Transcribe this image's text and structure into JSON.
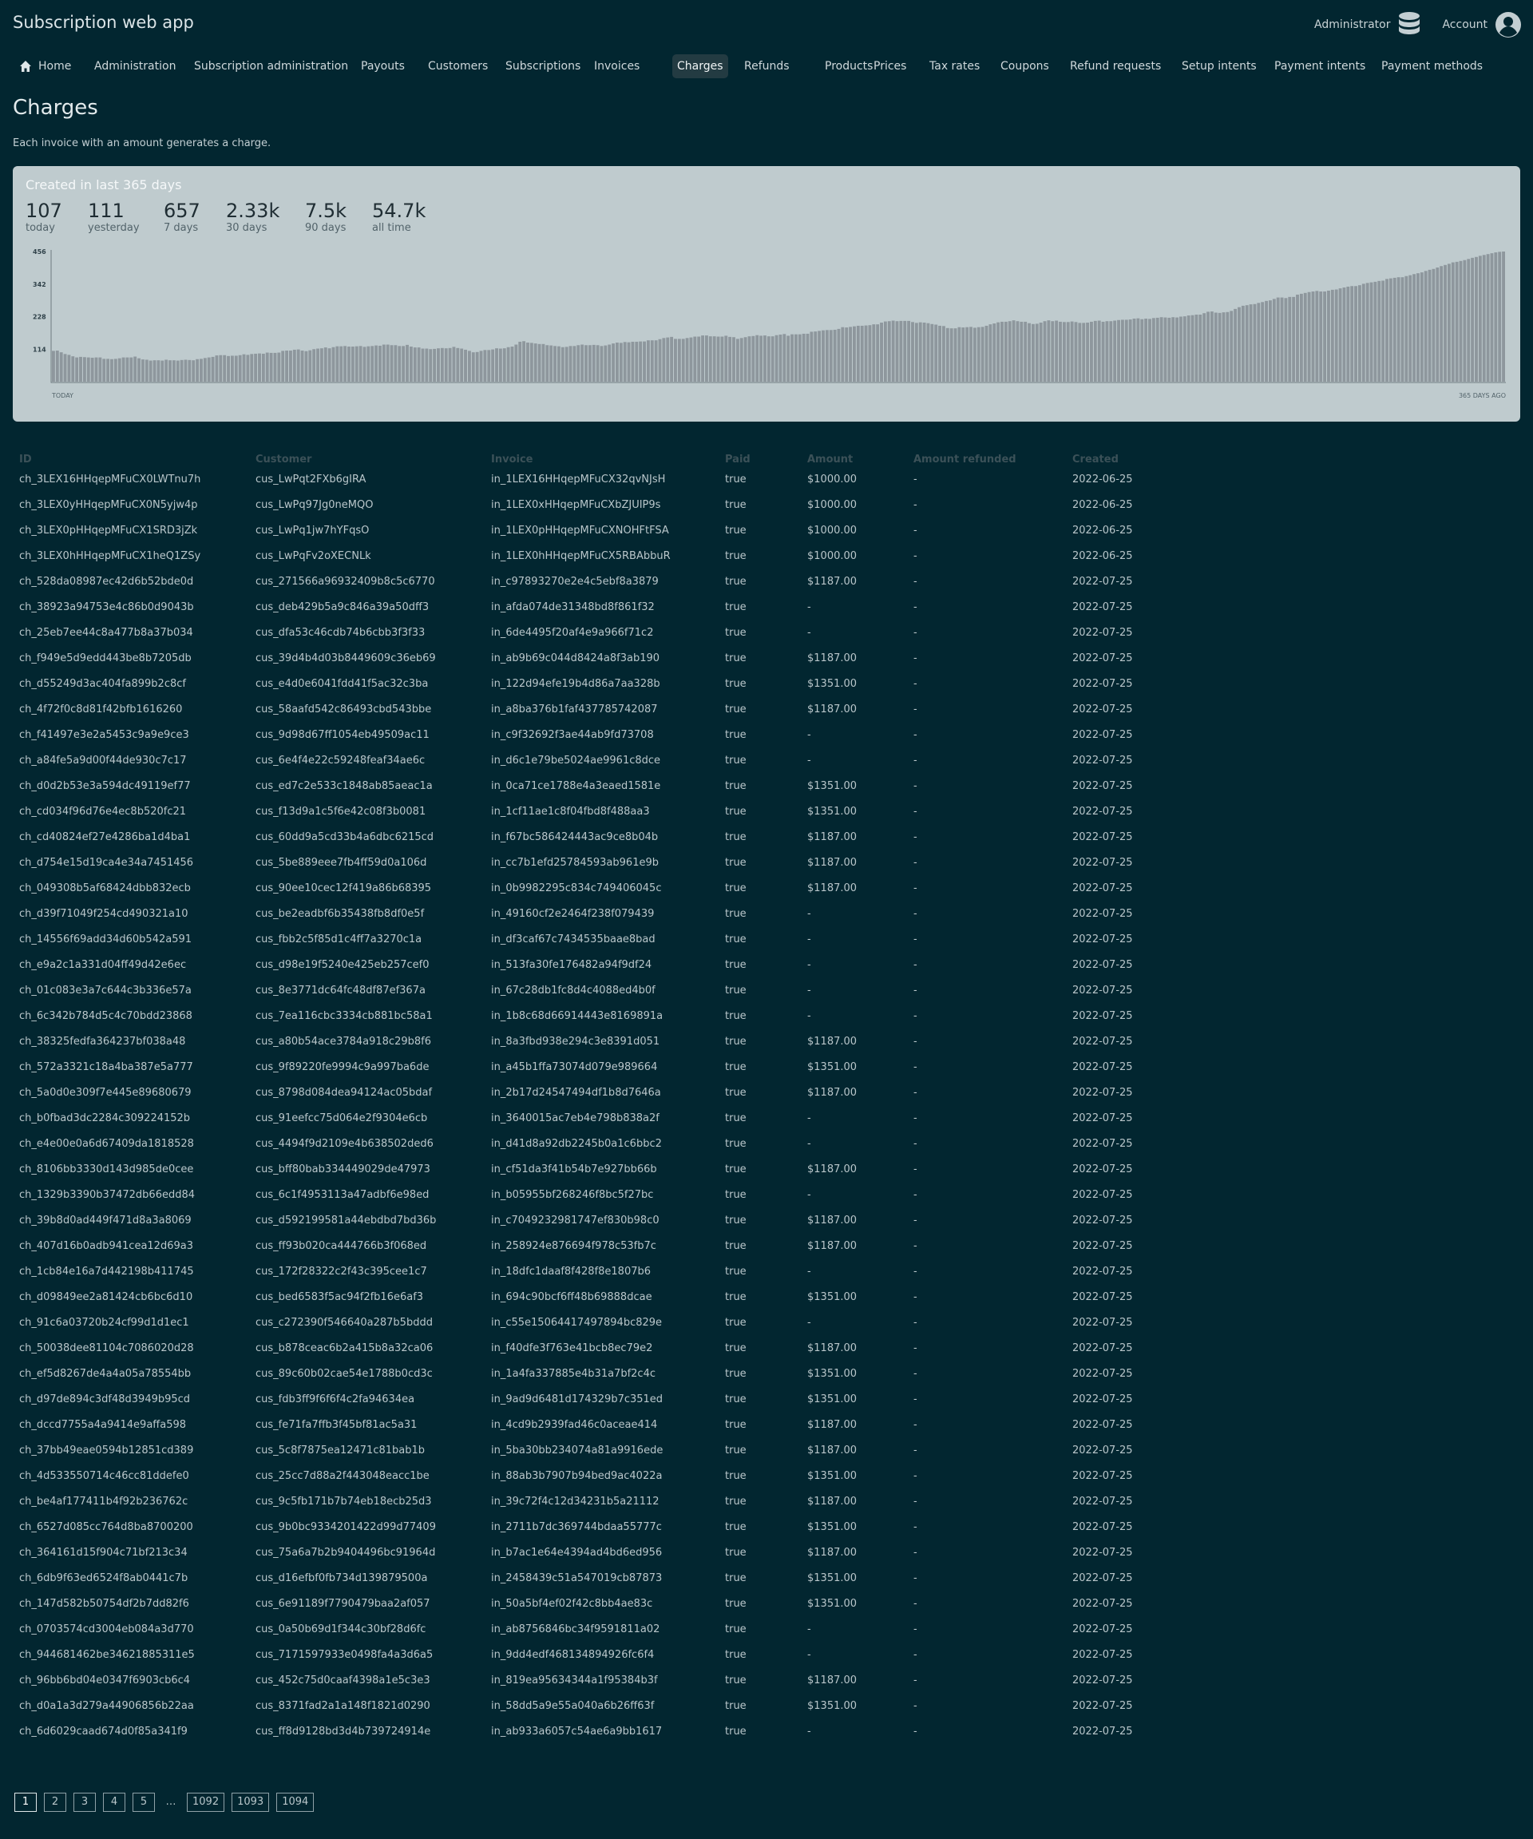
{
  "app_title": "Subscription web app",
  "header": {
    "admin_label": "Administrator",
    "admin_icon": "database-icon",
    "account_label": "Account",
    "account_icon": "user-circle-icon"
  },
  "nav": {
    "active": "Charges",
    "home_icon": "home-icon",
    "items": [
      "Home",
      "Administration",
      "Subscription administration",
      "Payouts",
      "Customers",
      "Subscriptions",
      "Invoices",
      "Charges",
      "Refunds",
      "Products",
      "Prices",
      "Tax rates",
      "Coupons",
      "Refund requests",
      "Setup intents",
      "Payment intents",
      "Payment methods"
    ]
  },
  "page": {
    "title": "Charges",
    "description": "Each invoice with an amount generates a charge."
  },
  "stats": {
    "title": "Created in last 365 days",
    "items": [
      {
        "value": "107",
        "label": "today"
      },
      {
        "value": "111",
        "label": "yesterday"
      },
      {
        "value": "657",
        "label": "7 days"
      },
      {
        "value": "2.33k",
        "label": "30 days"
      },
      {
        "value": "7.5k",
        "label": "90 days"
      },
      {
        "value": "54.7k",
        "label": "all time"
      }
    ]
  },
  "chart_data": {
    "type": "bar",
    "y_ticks": [
      "456",
      "342",
      "228",
      "114"
    ],
    "ylim": [
      0,
      456
    ],
    "x_left_label": "TODAY",
    "x_right_label": "365 DAYS AGO",
    "bar_color": "#8e979d",
    "values": [
      108,
      109,
      103,
      97,
      94,
      89,
      85,
      87,
      86,
      85,
      84,
      85,
      85,
      80,
      80,
      79,
      80,
      82,
      85,
      85,
      85,
      88,
      82,
      78,
      77,
      74,
      75,
      75,
      74,
      77,
      75,
      75,
      74,
      76,
      77,
      76,
      75,
      79,
      80,
      83,
      85,
      87,
      92,
      93,
      93,
      90,
      91,
      91,
      93,
      96,
      94,
      97,
      98,
      99,
      98,
      102,
      101,
      101,
      102,
      108,
      109,
      109,
      112,
      113,
      109,
      107,
      110,
      114,
      116,
      117,
      120,
      117,
      121,
      124,
      124,
      125,
      123,
      123,
      124,
      125,
      122,
      124,
      125,
      127,
      126,
      130,
      130,
      128,
      128,
      125,
      125,
      129,
      123,
      120,
      120,
      116,
      116,
      114,
      115,
      117,
      118,
      117,
      118,
      122,
      118,
      116,
      112,
      108,
      103,
      104,
      108,
      111,
      111,
      113,
      117,
      116,
      117,
      121,
      123,
      130,
      140,
      142,
      137,
      136,
      134,
      132,
      132,
      128,
      127,
      125,
      124,
      121,
      122,
      125,
      125,
      128,
      130,
      128,
      128,
      129,
      128,
      125,
      127,
      130,
      134,
      137,
      136,
      139,
      138,
      140,
      140,
      141,
      141,
      145,
      145,
      145,
      149,
      153,
      155,
      157,
      150,
      150,
      150,
      153,
      155,
      158,
      158,
      162,
      162,
      159,
      159,
      158,
      158,
      161,
      157,
      156,
      150,
      153,
      156,
      159,
      160,
      163,
      161,
      162,
      159,
      159,
      163,
      165,
      167,
      161,
      166,
      166,
      166,
      168,
      168,
      175,
      176,
      178,
      180,
      181,
      181,
      182,
      185,
      191,
      190,
      192,
      194,
      196,
      196,
      197,
      198,
      201,
      201,
      207,
      211,
      212,
      214,
      212,
      213,
      213,
      213,
      209,
      206,
      208,
      207,
      205,
      202,
      200,
      196,
      195,
      188,
      187,
      187,
      191,
      190,
      191,
      192,
      189,
      191,
      192,
      196,
      201,
      204,
      208,
      210,
      210,
      212,
      215,
      212,
      210,
      210,
      205,
      202,
      203,
      207,
      212,
      215,
      212,
      214,
      210,
      209,
      209,
      211,
      209,
      206,
      206,
      207,
      210,
      213,
      214,
      210,
      212,
      212,
      214,
      216,
      217,
      217,
      218,
      221,
      222,
      219,
      221,
      220,
      223,
      224,
      226,
      225,
      224,
      226,
      225,
      228,
      229,
      232,
      233,
      235,
      235,
      240,
      245,
      246,
      242,
      241,
      243,
      244,
      248,
      255,
      261,
      266,
      268,
      271,
      272,
      276,
      279,
      283,
      285,
      290,
      295,
      295,
      293,
      297,
      297,
      305,
      308,
      311,
      314,
      316,
      318,
      316,
      316,
      319,
      322,
      323,
      327,
      330,
      333,
      335,
      335,
      338,
      343,
      346,
      348,
      350,
      353,
      354,
      360,
      362,
      364,
      366,
      366,
      370,
      373,
      377,
      380,
      383,
      388,
      392,
      395,
      400,
      405,
      409,
      413,
      418,
      420,
      423,
      426,
      430,
      434,
      437,
      441,
      444,
      447,
      450,
      453,
      455,
      456
    ]
  },
  "table": {
    "headers": [
      "ID",
      "Customer",
      "Invoice",
      "Paid",
      "Amount",
      "Amount refunded",
      "Created"
    ],
    "rows": [
      [
        "ch_3LEX16HHqepMFuCX0LWTnu7h",
        "cus_LwPqt2FXb6gIRA",
        "in_1LEX16HHqepMFuCX32qvNJsH",
        "true",
        "$1000.00",
        "-",
        "2022-06-25"
      ],
      [
        "ch_3LEX0yHHqepMFuCX0N5yjw4p",
        "cus_LwPq97Jg0neMQO",
        "in_1LEX0xHHqepMFuCXbZJUIP9s",
        "true",
        "$1000.00",
        "-",
        "2022-06-25"
      ],
      [
        "ch_3LEX0pHHqepMFuCX1SRD3jZk",
        "cus_LwPq1jw7hYFqsO",
        "in_1LEX0pHHqepMFuCXNOHFtFSA",
        "true",
        "$1000.00",
        "-",
        "2022-06-25"
      ],
      [
        "ch_3LEX0hHHqepMFuCX1heQ1ZSy",
        "cus_LwPqFv2oXECNLk",
        "in_1LEX0hHHqepMFuCX5RBAbbuR",
        "true",
        "$1000.00",
        "-",
        "2022-06-25"
      ],
      [
        "ch_528da08987ec42d6b52bde0d",
        "cus_271566a96932409b8c5c6770",
        "in_c97893270e2e4c5ebf8a3879",
        "true",
        "$1187.00",
        "-",
        "2022-07-25"
      ],
      [
        "ch_38923a94753e4c86b0d9043b",
        "cus_deb429b5a9c846a39a50dff3",
        "in_afda074de31348bd8f861f32",
        "true",
        "-",
        "-",
        "2022-07-25"
      ],
      [
        "ch_25eb7ee44c8a477b8a37b034",
        "cus_dfa53c46cdb74b6cbb3f3f33",
        "in_6de4495f20af4e9a966f71c2",
        "true",
        "-",
        "-",
        "2022-07-25"
      ],
      [
        "ch_f949e5d9edd443be8b7205db",
        "cus_39d4b4d03b8449609c36eb69",
        "in_ab9b69c044d8424a8f3ab190",
        "true",
        "$1187.00",
        "-",
        "2022-07-25"
      ],
      [
        "ch_d55249d3ac404fa899b2c8cf",
        "cus_e4d0e6041fdd41f5ac32c3ba",
        "in_122d94efe19b4d86a7aa328b",
        "true",
        "$1351.00",
        "-",
        "2022-07-25"
      ],
      [
        "ch_4f72f0c8d81f42bfb1616260",
        "cus_58aafd542c86493cbd543bbe",
        "in_a8ba376b1faf437785742087",
        "true",
        "$1187.00",
        "-",
        "2022-07-25"
      ],
      [
        "ch_f41497e3e2a5453c9a9e9ce3",
        "cus_9d98d67ff1054eb49509ac11",
        "in_c9f32692f3ae44ab9fd73708",
        "true",
        "-",
        "-",
        "2022-07-25"
      ],
      [
        "ch_a84fe5a9d00f44de930c7c17",
        "cus_6e4f4e22c59248feaf34ae6c",
        "in_d6c1e79be5024ae9961c8dce",
        "true",
        "-",
        "-",
        "2022-07-25"
      ],
      [
        "ch_d0d2b53e3a594dc49119ef77",
        "cus_ed7c2e533c1848ab85aeac1a",
        "in_0ca71ce1788e4a3eaed1581e",
        "true",
        "$1351.00",
        "-",
        "2022-07-25"
      ],
      [
        "ch_cd034f96d76e4ec8b520fc21",
        "cus_f13d9a1c5f6e42c08f3b0081",
        "in_1cf11ae1c8f04fbd8f488aa3",
        "true",
        "$1351.00",
        "-",
        "2022-07-25"
      ],
      [
        "ch_cd40824ef27e4286ba1d4ba1",
        "cus_60dd9a5cd33b4a6dbc6215cd",
        "in_f67bc586424443ac9ce8b04b",
        "true",
        "$1187.00",
        "-",
        "2022-07-25"
      ],
      [
        "ch_d754e15d19ca4e34a7451456",
        "cus_5be889eee7fb4ff59d0a106d",
        "in_cc7b1efd25784593ab961e9b",
        "true",
        "$1187.00",
        "-",
        "2022-07-25"
      ],
      [
        "ch_049308b5af68424dbb832ecb",
        "cus_90ee10cec12f419a86b68395",
        "in_0b9982295c834c749406045c",
        "true",
        "$1187.00",
        "-",
        "2022-07-25"
      ],
      [
        "ch_d39f71049f254cd490321a10",
        "cus_be2eadbf6b35438fb8df0e5f",
        "in_49160cf2e2464f238f079439",
        "true",
        "-",
        "-",
        "2022-07-25"
      ],
      [
        "ch_14556f69add34d60b542a591",
        "cus_fbb2c5f85d1c4ff7a3270c1a",
        "in_df3caf67c7434535baae8bad",
        "true",
        "-",
        "-",
        "2022-07-25"
      ],
      [
        "ch_e9a2c1a331d04ff49d42e6ec",
        "cus_d98e19f5240e425eb257cef0",
        "in_513fa30fe176482a94f9df24",
        "true",
        "-",
        "-",
        "2022-07-25"
      ],
      [
        "ch_01c083e3a7c644c3b336e57a",
        "cus_8e3771dc64fc48df87ef367a",
        "in_67c28db1fc8d4c4088ed4b0f",
        "true",
        "-",
        "-",
        "2022-07-25"
      ],
      [
        "ch_6c342b784d5c4c70bdd23868",
        "cus_7ea116cbc3334cb881bc58a1",
        "in_1b8c68d66914443e8169891a",
        "true",
        "-",
        "-",
        "2022-07-25"
      ],
      [
        "ch_38325fedfa364237bf038a48",
        "cus_a80b54ace3784a918c29b8f6",
        "in_8a3fbd938e294c3e8391d051",
        "true",
        "$1187.00",
        "-",
        "2022-07-25"
      ],
      [
        "ch_572a3321c18a4ba387e5a777",
        "cus_9f89220fe9994c9a997ba6de",
        "in_a45b1ffa73074d079e989664",
        "true",
        "$1351.00",
        "-",
        "2022-07-25"
      ],
      [
        "ch_5a0d0e309f7e445e89680679",
        "cus_8798d084dea94124ac05bdaf",
        "in_2b17d24547494df1b8d7646a",
        "true",
        "$1187.00",
        "-",
        "2022-07-25"
      ],
      [
        "ch_b0fbad3dc2284c309224152b",
        "cus_91eefcc75d064e2f9304e6cb",
        "in_3640015ac7eb4e798b838a2f",
        "true",
        "-",
        "-",
        "2022-07-25"
      ],
      [
        "ch_e4e00e0a6d67409da1818528",
        "cus_4494f9d2109e4b638502ded6",
        "in_d41d8a92db2245b0a1c6bbc2",
        "true",
        "-",
        "-",
        "2022-07-25"
      ],
      [
        "ch_8106bb3330d143d985de0cee",
        "cus_bff80bab334449029de47973",
        "in_cf51da3f41b54b7e927bb66b",
        "true",
        "$1187.00",
        "-",
        "2022-07-25"
      ],
      [
        "ch_1329b3390b37472db66edd84",
        "cus_6c1f4953113a47adbf6e98ed",
        "in_b05955bf268246f8bc5f27bc",
        "true",
        "-",
        "-",
        "2022-07-25"
      ],
      [
        "ch_39b8d0ad449f471d8a3a8069",
        "cus_d592199581a44ebdbd7bd36b",
        "in_c7049232981747ef830b98c0",
        "true",
        "$1187.00",
        "-",
        "2022-07-25"
      ],
      [
        "ch_407d16b0adb941cea12d69a3",
        "cus_ff93b020ca444766b3f068ed",
        "in_258924e876694f978c53fb7c",
        "true",
        "$1187.00",
        "-",
        "2022-07-25"
      ],
      [
        "ch_1cb84e16a7d442198b411745",
        "cus_172f28322c2f43c395cee1c7",
        "in_18dfc1daaf8f428f8e1807b6",
        "true",
        "-",
        "-",
        "2022-07-25"
      ],
      [
        "ch_d09849ee2a81424cb6bc6d10",
        "cus_bed6583f5ac94f2fb16e6af3",
        "in_694c90bcf6ff48b69888dcae",
        "true",
        "$1351.00",
        "-",
        "2022-07-25"
      ],
      [
        "ch_91c6a03720b24cf99d1d1ec1",
        "cus_c272390f546640a287b5bddd",
        "in_c55e15064417497894bc829e",
        "true",
        "-",
        "-",
        "2022-07-25"
      ],
      [
        "ch_50038dee81104c7086020d28",
        "cus_b878ceac6b2a415b8a32ca06",
        "in_f40dfe3f763e41bcb8ec79e2",
        "true",
        "$1187.00",
        "-",
        "2022-07-25"
      ],
      [
        "ch_ef5d8267de4a4a05a78554bb",
        "cus_89c60b02cae54e1788b0cd3c",
        "in_1a4fa337885e4b31a7bf2c4c",
        "true",
        "$1351.00",
        "-",
        "2022-07-25"
      ],
      [
        "ch_d97de894c3df48d3949b95cd",
        "cus_fdb3ff9f6f6f4c2fa94634ea",
        "in_9ad9d6481d174329b7c351ed",
        "true",
        "$1351.00",
        "-",
        "2022-07-25"
      ],
      [
        "ch_dccd7755a4a9414e9affa598",
        "cus_fe71fa7ffb3f45bf81ac5a31",
        "in_4cd9b2939fad46c0aceae414",
        "true",
        "$1187.00",
        "-",
        "2022-07-25"
      ],
      [
        "ch_37bb49eae0594b12851cd389",
        "cus_5c8f7875ea12471c81bab1b",
        "in_5ba30bb234074a81a9916ede",
        "true",
        "$1187.00",
        "-",
        "2022-07-25"
      ],
      [
        "ch_4d533550714c46cc81ddefe0",
        "cus_25cc7d88a2f443048eacc1be",
        "in_88ab3b7907b94bed9ac4022a",
        "true",
        "$1351.00",
        "-",
        "2022-07-25"
      ],
      [
        "ch_be4af177411b4f92b236762c",
        "cus_9c5fb171b7b74eb18ecb25d3",
        "in_39c72f4c12d34231b5a21112",
        "true",
        "$1187.00",
        "-",
        "2022-07-25"
      ],
      [
        "ch_6527d085cc764d8ba8700200",
        "cus_9b0bc9334201422d99d77409",
        "in_2711b7dc369744bdaa55777c",
        "true",
        "$1351.00",
        "-",
        "2022-07-25"
      ],
      [
        "ch_364161d15f904c71bf213c34",
        "cus_75a6a7b2b9404496bc91964d",
        "in_b7ac1e64e4394ad4bd6ed956",
        "true",
        "$1187.00",
        "-",
        "2022-07-25"
      ],
      [
        "ch_6db9f63ed6524f8ab0441c7b",
        "cus_d16efbf0fb734d139879500a",
        "in_2458439c51a547019cb87873",
        "true",
        "$1351.00",
        "-",
        "2022-07-25"
      ],
      [
        "ch_147d582b50754df2b7dd82f6",
        "cus_6e91189f7790479baa2af057",
        "in_50a5bf4ef02f42c8bb4ae83c",
        "true",
        "$1351.00",
        "-",
        "2022-07-25"
      ],
      [
        "ch_0703574cd3004eb084a3d770",
        "cus_0a50b69d1f344c30bf28d6fc",
        "in_ab8756846bc34f9591811a02",
        "true",
        "-",
        "-",
        "2022-07-25"
      ],
      [
        "ch_944681462be34621885311e5",
        "cus_7171597933e0498fa4a3d6a5",
        "in_9dd4edf468134894926fc6f4",
        "true",
        "-",
        "-",
        "2022-07-25"
      ],
      [
        "ch_96bb6bd04e0347f6903cb6c4",
        "cus_452c75d0caaf4398a1e5c3e3",
        "in_819ea95634344a1f95384b3f",
        "true",
        "$1187.00",
        "-",
        "2022-07-25"
      ],
      [
        "ch_d0a1a3d279a44906856b22aa",
        "cus_8371fad2a1a148f1821d0290",
        "in_58dd5a9e55a040a6b26ff63f",
        "true",
        "$1351.00",
        "-",
        "2022-07-25"
      ],
      [
        "ch_6d6029caad674d0f85a341f9",
        "cus_ff8d9128bd3d4b739724914e",
        "in_ab933a6057c54ae6a9bb1617",
        "true",
        "-",
        "-",
        "2022-07-25"
      ]
    ]
  },
  "pagination": {
    "current": "1",
    "pages": [
      "1",
      "2",
      "3",
      "4",
      "5",
      "…",
      "1092",
      "1093",
      "1094"
    ]
  }
}
